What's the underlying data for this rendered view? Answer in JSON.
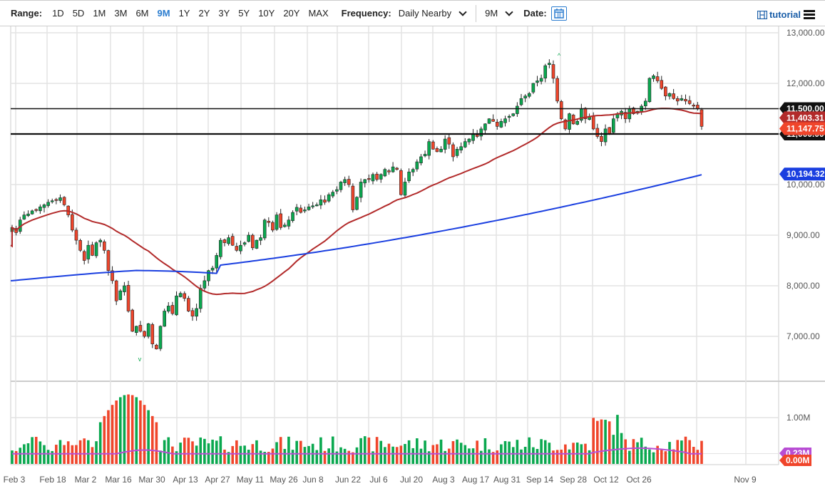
{
  "toolbar": {
    "range_label": "Range:",
    "ranges": [
      "1D",
      "5D",
      "1M",
      "3M",
      "6M",
      "9M",
      "1Y",
      "2Y",
      "3Y",
      "5Y",
      "10Y",
      "20Y",
      "MAX"
    ],
    "active_range": "9M",
    "frequency_label": "Frequency:",
    "frequency_value": "Daily Nearby",
    "period_value": "9M",
    "date_label": "Date:",
    "tutorial_label": "tutorial"
  },
  "colors": {
    "up": "#0aa84f",
    "down": "#f0452b",
    "ma_fast": "#b22a2a",
    "ma_slow": "#1a3fe0",
    "vol_ma": "#b84dd4",
    "grid": "#e3e3e3"
  },
  "chart_data": {
    "type": "candlestick",
    "title": "",
    "price_axis": {
      "ticks": [
        "13,000.00",
        "12,000.00",
        "11,000.00",
        "10,000.00",
        "9,000.00",
        "8,000.00",
        "7,000.00"
      ],
      "values": [
        13000,
        12000,
        11000,
        10000,
        9000,
        8000,
        7000
      ],
      "ylim": [
        6000,
        13000
      ]
    },
    "volume_axis": {
      "ticks": [
        "1.00M"
      ],
      "values": [
        1.0
      ]
    },
    "x_ticks": [
      "Feb 3",
      "Feb 18",
      "Mar 2",
      "Mar 16",
      "Mar 30",
      "Apr 13",
      "Apr 27",
      "May 11",
      "May 26",
      "Jun 8",
      "Jun 22",
      "Jul 6",
      "Jul 20",
      "Aug 3",
      "Aug 17",
      "Aug 31",
      "Sep 14",
      "Sep 28",
      "Oct 12",
      "Oct 26",
      "Nov 9"
    ],
    "horizontal_lines": [
      {
        "label": "11,500.00",
        "value": 11500
      },
      {
        "label": "11,000.00",
        "value": 11000
      }
    ],
    "price_tags": [
      {
        "label": "11,403.31",
        "value": 11403.31,
        "color": "#b22a2a",
        "name": "ma-fast-tag"
      },
      {
        "label": "11,147.75",
        "value": 11147.75,
        "color": "#f0452b",
        "name": "last-price-tag"
      },
      {
        "label": "10,194.32",
        "value": 10194.32,
        "color": "#1a3fe0",
        "name": "ma-slow-tag"
      }
    ],
    "volume_tags": [
      {
        "label": "0.23M",
        "value": 0.23,
        "color": "#b84dd4",
        "name": "vol-ma-tag"
      },
      {
        "label": "0.00M",
        "value": 0.0,
        "color": "#f0452b",
        "name": "vol-last-tag"
      }
    ],
    "close_series": [
      9150,
      9050,
      9300,
      9400,
      9420,
      9480,
      9500,
      9560,
      9600,
      9650,
      9680,
      9700,
      9740,
      9600,
      9400,
      9100,
      8900,
      8700,
      8500,
      8800,
      8600,
      8850,
      8900,
      8700,
      8300,
      8100,
      7700,
      7900,
      8000,
      7500,
      7100,
      7200,
      7100,
      7000,
      7250,
      6850,
      6750,
      7200,
      7500,
      7600,
      7450,
      7800,
      7850,
      7750,
      7500,
      7400,
      7550,
      7950,
      8100,
      8300,
      8350,
      8600,
      8900,
      8850,
      8950,
      8800,
      8700,
      8800,
      8850,
      9000,
      8750,
      8900,
      8950,
      9300,
      9250,
      9100,
      9400,
      9150,
      9200,
      9300,
      9450,
      9550,
      9450,
      9500,
      9560,
      9580,
      9600,
      9700,
      9650,
      9800,
      9850,
      9900,
      10050,
      10100,
      10000,
      9500,
      9750,
      10050,
      10100,
      10100,
      10200,
      10100,
      10200,
      10300,
      10250,
      10350,
      10300,
      9800,
      10050,
      10250,
      10300,
      10450,
      10550,
      10600,
      10850,
      10700,
      10650,
      10700,
      10900,
      10800,
      10550,
      10700,
      10750,
      10850,
      10900,
      11000,
      10950,
      11100,
      11200,
      11300,
      11250,
      11150,
      11250,
      11300,
      11350,
      11400,
      11550,
      11700,
      11750,
      11800,
      12000,
      12050,
      12100,
      12350,
      12400,
      12100,
      11650,
      11300,
      11100,
      11400,
      11200,
      11250,
      11500,
      11300,
      11350,
      11100,
      10950,
      10850,
      11100,
      11000,
      11300,
      11400,
      11450,
      11300,
      11500,
      11400,
      11450,
      11550,
      11650,
      12100,
      12150,
      12050,
      11900,
      11750,
      11800,
      11700,
      11650,
      11700,
      11650,
      11600,
      11550,
      11500,
      11150
    ],
    "ma_fast_series_note": "50-day moving average (red) ending 11,403.31",
    "ma_slow_series_note": "200-day moving average (blue) ending 10,194.32",
    "volume_note": "daily volume bars, colored by candle direction, peak ~1.5M mid-March; volume MA ending 0.23M"
  }
}
